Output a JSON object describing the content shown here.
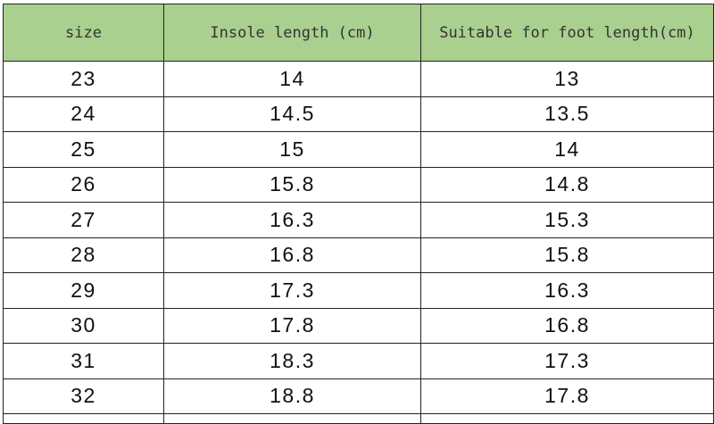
{
  "header": {
    "size": "size",
    "insole": "Insole length (cm)",
    "foot": "Suitable for foot length(cm)"
  },
  "header_color": "#a9d08e",
  "rows": [
    {
      "size": "23",
      "insole": "14",
      "foot": "13"
    },
    {
      "size": "24",
      "insole": "14.5",
      "foot": "13.5"
    },
    {
      "size": "25",
      "insole": "15",
      "foot": "14"
    },
    {
      "size": "26",
      "insole": "15.8",
      "foot": "14.8"
    },
    {
      "size": "27",
      "insole": "16.3",
      "foot": "15.3"
    },
    {
      "size": "28",
      "insole": "16.8",
      "foot": "15.8"
    },
    {
      "size": "29",
      "insole": "17.3",
      "foot": "16.3"
    },
    {
      "size": "30",
      "insole": "17.8",
      "foot": "16.8"
    },
    {
      "size": "31",
      "insole": "18.3",
      "foot": "17.3"
    },
    {
      "size": "32",
      "insole": "18.8",
      "foot": "17.8"
    }
  ]
}
